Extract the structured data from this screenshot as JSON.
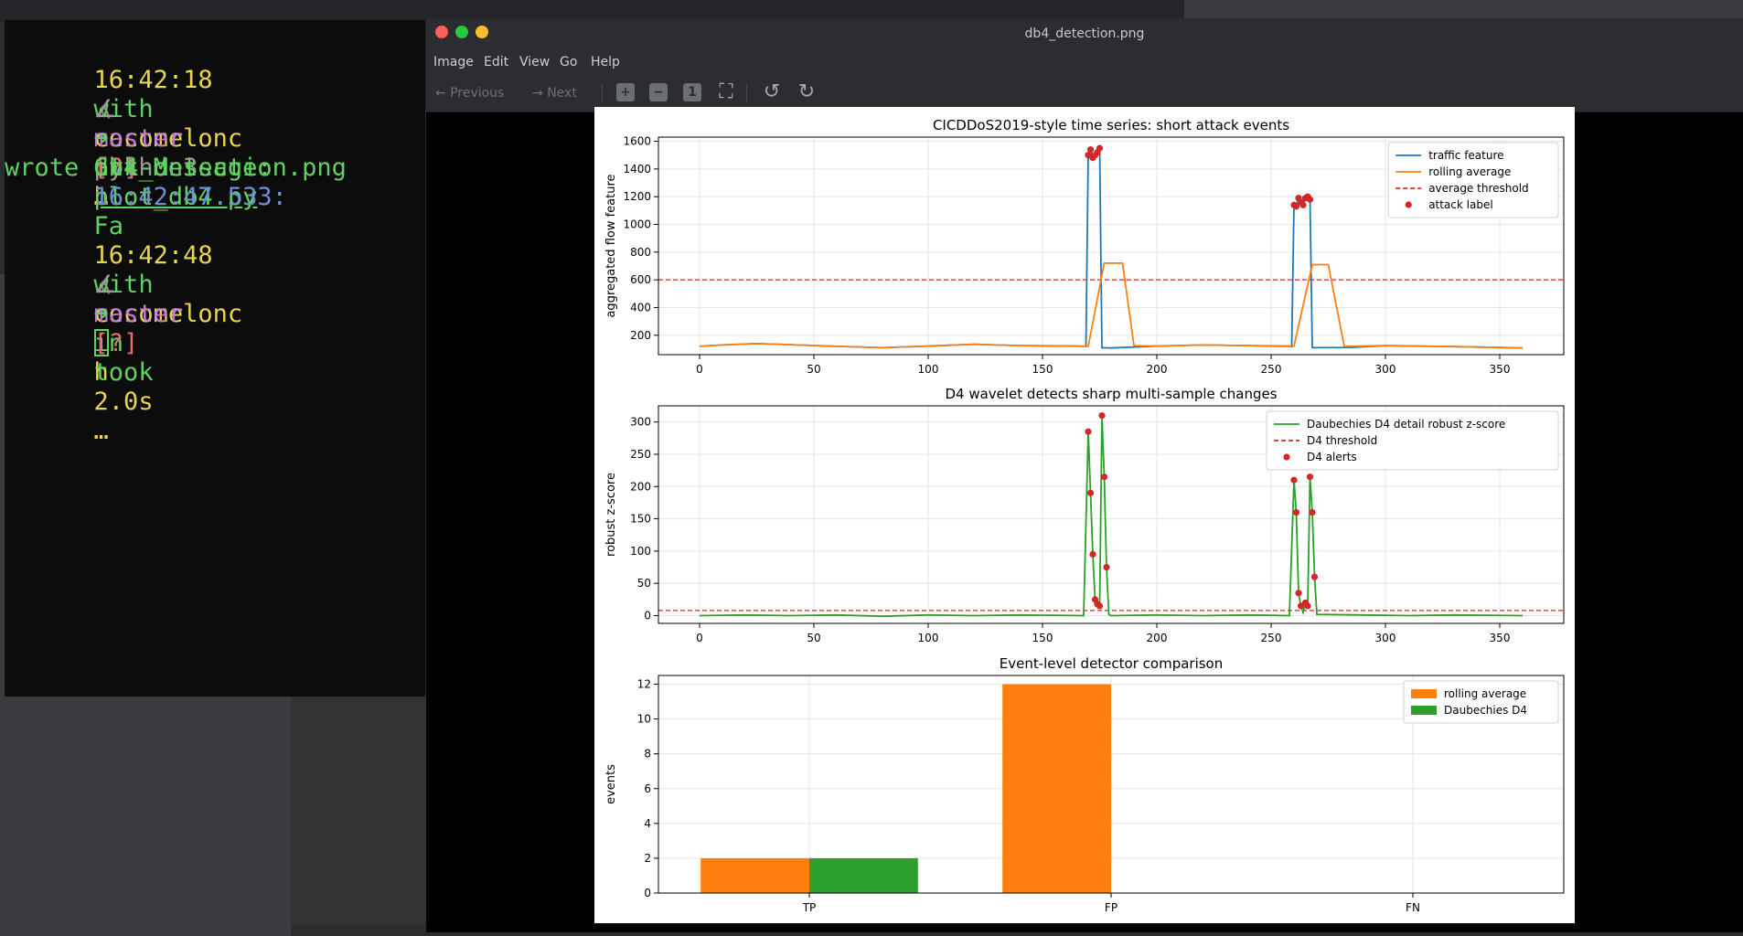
{
  "terminal": {
    "lines": [
      {
        "time": "16:42:18",
        "with": "with",
        "user": "cocomelonc",
        "in": "in",
        "host": "h"
      },
      {
        "prompt": "master",
        "status": "[?]",
        "ellipsis": "…"
      },
      {
        "arrow": "➜",
        "cmd": "python3",
        "arg": "plot_db4.py"
      },
      {
        "label": "Gtk-Message:",
        "time": "16:42:47.533:",
        "msg": "Fa"
      },
      {
        "text": "wrote db4_detection.png"
      },
      {
        "time": "16:42:48",
        "with": "with",
        "user": "cocomelonc",
        "in": "in",
        "host": "h"
      },
      {
        "prompt": "master",
        "status": "[?]",
        "took": "took",
        "duration": "2.0s",
        "ellipsis": "…"
      },
      {
        "arrow": "➜"
      }
    ],
    "prompt_glyph": "∡"
  },
  "viewer": {
    "title": "db4_detection.png",
    "menu": [
      "Image",
      "Edit",
      "View",
      "Go",
      "Help"
    ],
    "toolbar": {
      "previous": "Previous",
      "next": "Next",
      "zoom_in": "+",
      "zoom_out": "−",
      "normal": "1",
      "fit": "⛶",
      "rotate_left": "↺",
      "rotate_right": "↻"
    },
    "colors": {
      "close": "#ff5f57",
      "minimize": "#28c840",
      "maximize": "#febc2e"
    }
  },
  "chart_data": [
    {
      "type": "line",
      "title": "CICDDoS2019-style time series: short attack events",
      "xlabel": "",
      "ylabel": "aggregated flow feature",
      "xlim": [
        -18,
        378
      ],
      "ylim": [
        60,
        1630
      ],
      "xticks": [
        0,
        50,
        100,
        150,
        200,
        250,
        300,
        350
      ],
      "yticks": [
        200,
        400,
        600,
        800,
        1000,
        1200,
        1400,
        1600
      ],
      "grid": true,
      "legend_position": "top-right",
      "series": [
        {
          "name": "traffic feature",
          "color": "#1f77b4",
          "points": [
            [
              0,
              120
            ],
            [
              10,
              130
            ],
            [
              25,
              140
            ],
            [
              40,
              132
            ],
            [
              60,
              120
            ],
            [
              80,
              110
            ],
            [
              100,
              122
            ],
            [
              120,
              135
            ],
            [
              140,
              125
            ],
            [
              165,
              122
            ],
            [
              169,
              120
            ],
            [
              170,
              1500
            ],
            [
              171,
              1540
            ],
            [
              172,
              1480
            ],
            [
              173,
              1500
            ],
            [
              174,
              1520
            ],
            [
              175,
              1550
            ],
            [
              176,
              110
            ],
            [
              180,
              108
            ],
            [
              200,
              122
            ],
            [
              220,
              130
            ],
            [
              240,
              125
            ],
            [
              258,
              120
            ],
            [
              259,
              118
            ],
            [
              260,
              1140
            ],
            [
              261,
              1130
            ],
            [
              262,
              1190
            ],
            [
              263,
              1160
            ],
            [
              264,
              1140
            ],
            [
              265,
              1190
            ],
            [
              266,
              1200
            ],
            [
              267,
              1180
            ],
            [
              268,
              110
            ],
            [
              285,
              112
            ],
            [
              300,
              125
            ],
            [
              330,
              118
            ],
            [
              360,
              108
            ]
          ]
        },
        {
          "name": "rolling average",
          "color": "#ff7f0e",
          "points": [
            [
              0,
              120
            ],
            [
              10,
              130
            ],
            [
              25,
              140
            ],
            [
              40,
              132
            ],
            [
              60,
              120
            ],
            [
              80,
              110
            ],
            [
              100,
              122
            ],
            [
              120,
              135
            ],
            [
              140,
              125
            ],
            [
              170,
              120
            ],
            [
              177,
              720
            ],
            [
              185,
              720
            ],
            [
              190,
              125
            ],
            [
              200,
              122
            ],
            [
              220,
              130
            ],
            [
              240,
              125
            ],
            [
              260,
              122
            ],
            [
              268,
              710
            ],
            [
              275,
              710
            ],
            [
              282,
              120
            ],
            [
              300,
              125
            ],
            [
              330,
              118
            ],
            [
              360,
              108
            ]
          ]
        }
      ],
      "threshold": {
        "name": "average threshold",
        "value": 600,
        "color": "#d62728"
      },
      "markers": {
        "name": "attack label",
        "color": "#d62728",
        "points": [
          [
            170,
            1500
          ],
          [
            171,
            1540
          ],
          [
            172,
            1480
          ],
          [
            173,
            1500
          ],
          [
            174,
            1520
          ],
          [
            175,
            1550
          ],
          [
            260,
            1140
          ],
          [
            261,
            1130
          ],
          [
            262,
            1190
          ],
          [
            263,
            1160
          ],
          [
            264,
            1140
          ],
          [
            265,
            1190
          ],
          [
            266,
            1200
          ],
          [
            267,
            1180
          ]
        ]
      }
    },
    {
      "type": "line",
      "title": "D4 wavelet detects sharp multi-sample changes",
      "xlabel": "",
      "ylabel": "robust z-score",
      "xlim": [
        -18,
        378
      ],
      "ylim": [
        -12,
        325
      ],
      "xticks": [
        0,
        50,
        100,
        150,
        200,
        250,
        300,
        350
      ],
      "yticks": [
        0,
        50,
        100,
        150,
        200,
        250,
        300
      ],
      "grid": true,
      "legend_position": "top-right",
      "series": [
        {
          "name": "Daubechies D4 detail robust z-score",
          "color": "#2ca02c",
          "points": [
            [
              0,
              0
            ],
            [
              20,
              1
            ],
            [
              40,
              0
            ],
            [
              60,
              1
            ],
            [
              80,
              -1
            ],
            [
              100,
              1
            ],
            [
              120,
              0
            ],
            [
              140,
              1
            ],
            [
              168,
              0
            ],
            [
              170,
              285
            ],
            [
              171,
              190
            ],
            [
              172,
              95
            ],
            [
              173,
              25
            ],
            [
              174,
              18
            ],
            [
              175,
              15
            ],
            [
              176,
              310
            ],
            [
              177,
              215
            ],
            [
              178,
              75
            ],
            [
              179,
              2
            ],
            [
              180,
              0
            ],
            [
              200,
              1
            ],
            [
              220,
              0
            ],
            [
              240,
              1
            ],
            [
              258,
              0
            ],
            [
              260,
              210
            ],
            [
              261,
              160
            ],
            [
              262,
              35
            ],
            [
              263,
              15
            ],
            [
              264,
              5
            ],
            [
              265,
              20
            ],
            [
              266,
              15
            ],
            [
              267,
              215
            ],
            [
              268,
              160
            ],
            [
              269,
              60
            ],
            [
              270,
              2
            ],
            [
              290,
              1
            ],
            [
              310,
              0
            ],
            [
              330,
              1
            ],
            [
              360,
              0
            ]
          ]
        }
      ],
      "threshold": {
        "name": "D4 threshold",
        "value": 8,
        "color": "#d62728"
      },
      "markers": {
        "name": "D4 alerts",
        "color": "#d62728",
        "points": [
          [
            170,
            285
          ],
          [
            171,
            190
          ],
          [
            172,
            95
          ],
          [
            173,
            25
          ],
          [
            174,
            18
          ],
          [
            175,
            15
          ],
          [
            176,
            310
          ],
          [
            177,
            215
          ],
          [
            178,
            75
          ],
          [
            260,
            210
          ],
          [
            261,
            160
          ],
          [
            262,
            35
          ],
          [
            263,
            15
          ],
          [
            265,
            20
          ],
          [
            266,
            15
          ],
          [
            267,
            215
          ],
          [
            268,
            160
          ],
          [
            269,
            60
          ]
        ]
      }
    },
    {
      "type": "bar",
      "title": "Event-level detector comparison",
      "xlabel": "",
      "ylabel": "events",
      "categories": [
        "TP",
        "FP",
        "FN"
      ],
      "ylim": [
        0,
        12.5
      ],
      "yticks": [
        0,
        2,
        4,
        6,
        8,
        10,
        12
      ],
      "grid": true,
      "legend_position": "top-right",
      "series": [
        {
          "name": "rolling average",
          "color": "#ff7f0e",
          "values": [
            2,
            12,
            0
          ]
        },
        {
          "name": "Daubechies D4",
          "color": "#2ca02c",
          "values": [
            2,
            0,
            0
          ]
        }
      ]
    }
  ]
}
